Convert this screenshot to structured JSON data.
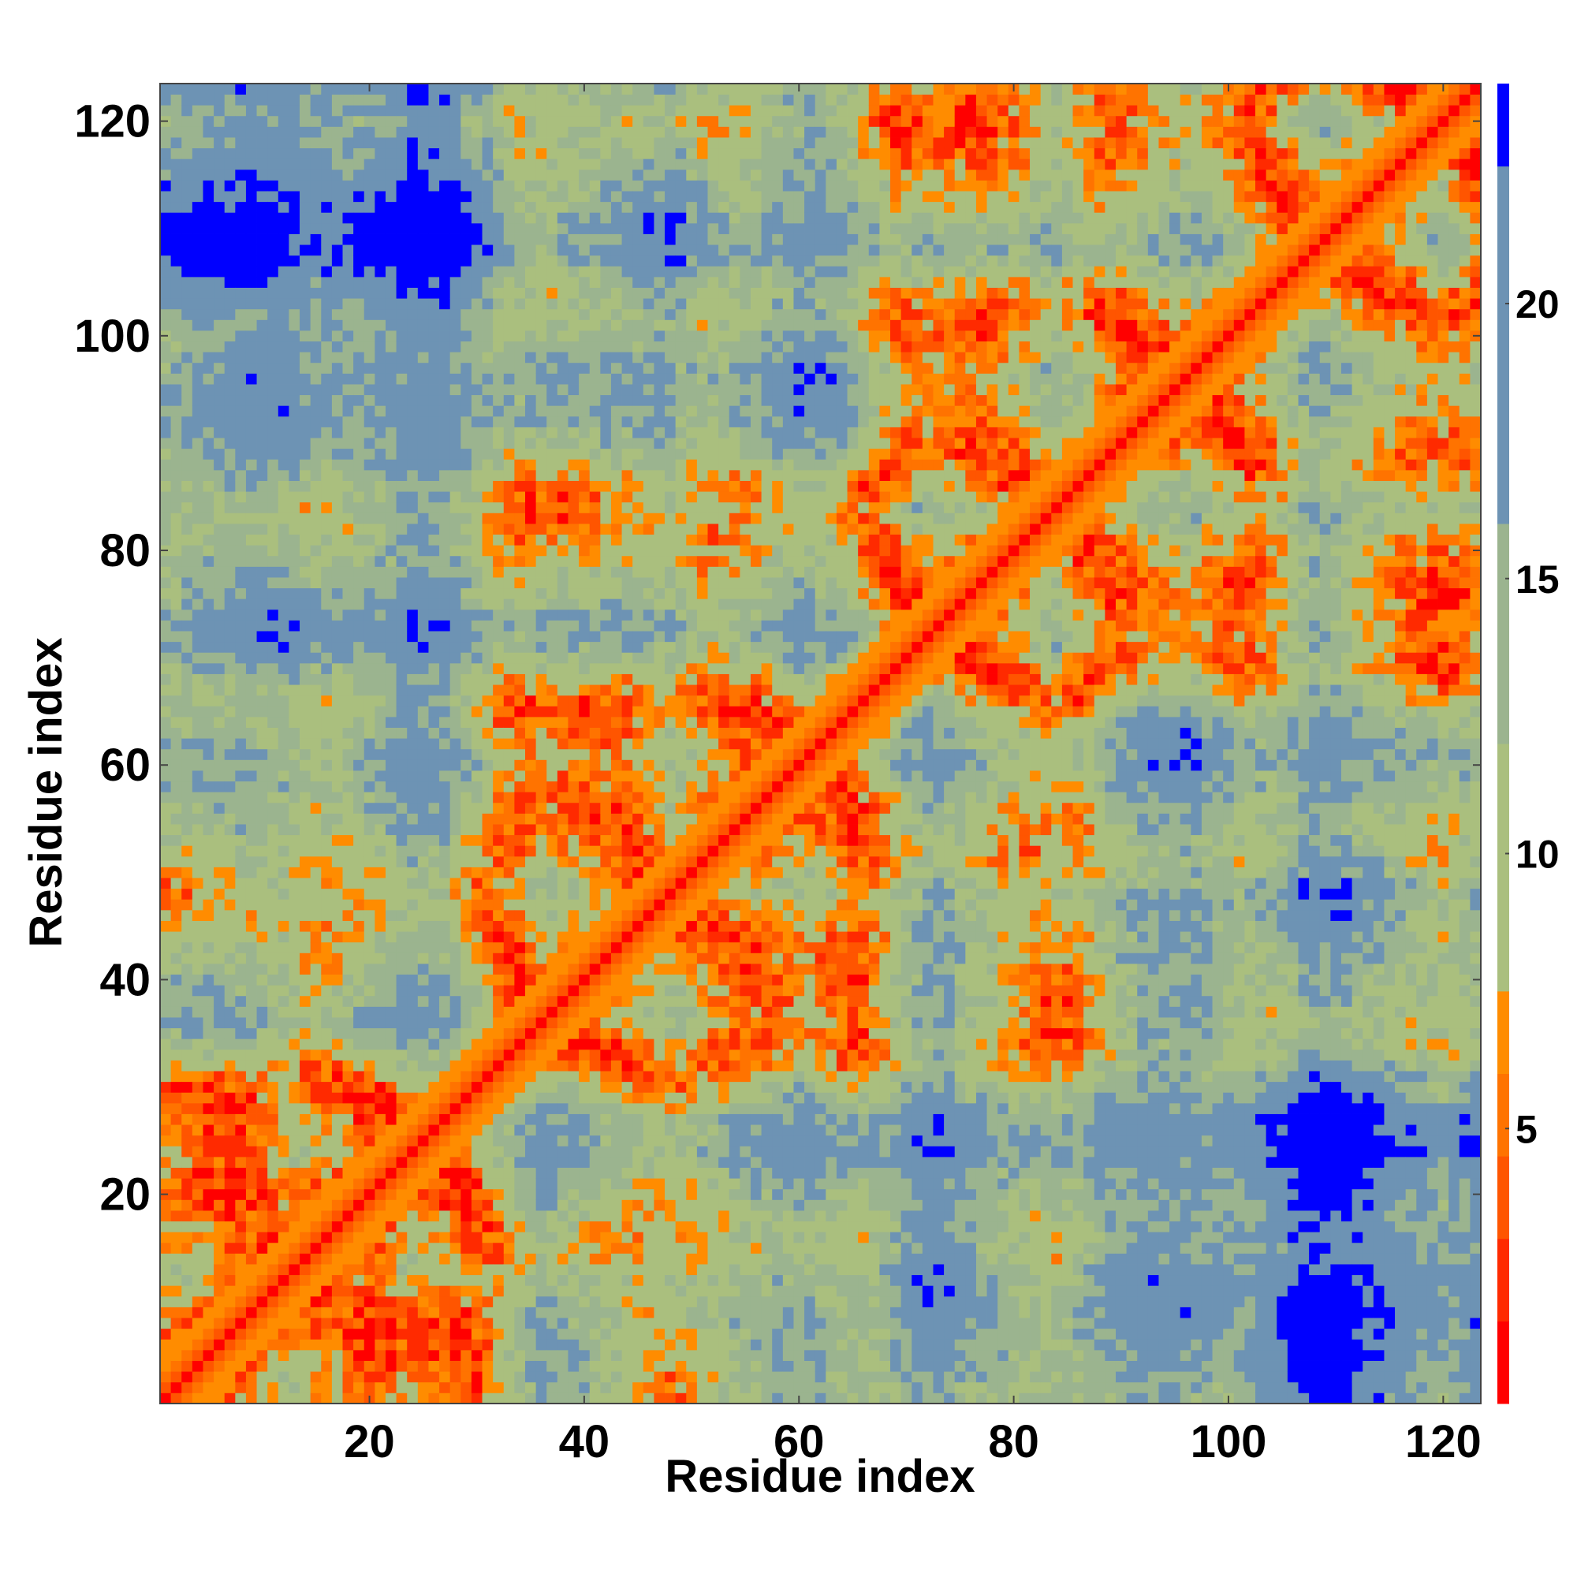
{
  "chart_data": {
    "type": "heatmap",
    "title": "",
    "xlabel": "Residue index",
    "ylabel": "Residue index",
    "x_range": [
      1,
      123
    ],
    "y_range": [
      1,
      123
    ],
    "xticks": [
      20,
      40,
      60,
      80,
      100,
      120
    ],
    "yticks": [
      20,
      40,
      60,
      80,
      100,
      120
    ],
    "colorbar": {
      "range": [
        0,
        24
      ],
      "ticks": [
        5,
        10,
        15,
        20
      ],
      "bins": [
        {
          "from": 0,
          "to": 1.5,
          "color": "#ff0000"
        },
        {
          "from": 1.5,
          "to": 3,
          "color": "#ff2a00"
        },
        {
          "from": 3,
          "to": 4.5,
          "color": "#ff5500"
        },
        {
          "from": 4.5,
          "to": 6,
          "color": "#ff7300"
        },
        {
          "from": 6,
          "to": 7.5,
          "color": "#ff8c00"
        },
        {
          "from": 7.5,
          "to": 12,
          "color": "#aabf7e"
        },
        {
          "from": 12,
          "to": 16,
          "color": "#9bb48f"
        },
        {
          "from": 16,
          "to": 22.5,
          "color": "#6d93b4"
        },
        {
          "from": 22.5,
          "to": 24,
          "color": "#0000ff"
        }
      ]
    },
    "matrix_description": "Symmetric residue-residue distance map; diagonal ~0 (red), cutoff at 24 (blue)"
  }
}
